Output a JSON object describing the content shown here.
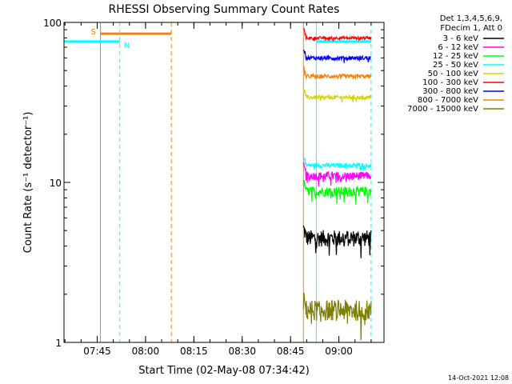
{
  "chart_data": {
    "type": "line",
    "title": "RHESSI Observing Summary Count Rates",
    "xlabel": "Start Time (02-May-08 07:34:42)",
    "ylabel": "Count Rate (s⁻¹ detector⁻¹)",
    "y_scale": "log",
    "ylim": [
      1,
      100
    ],
    "xlim": [
      "07:34:42",
      "09:14:00"
    ],
    "x_ticks": [
      "07:45",
      "08:00",
      "08:15",
      "08:30",
      "08:45",
      "09:00"
    ],
    "y_ticks": [
      "1",
      "10",
      "100"
    ],
    "grid": false,
    "legend_header": [
      "Det 1,3,4,5,6,9,",
      "FDecim 1, Att 0"
    ],
    "legend_position": "right",
    "series": [
      {
        "name": "3 - 6 keV",
        "color": "#000000",
        "segments": [
          {
            "x": [
              "08:49:00",
              "09:10:00"
            ],
            "level": 4.5,
            "noise": 0.12
          }
        ]
      },
      {
        "name": "6 - 12 keV",
        "color": "#ff00ff",
        "segments": [
          {
            "x": [
              "08:49:00",
              "09:10:00"
            ],
            "level": 11.0,
            "noise": 0.06
          }
        ]
      },
      {
        "name": "12 - 25 keV",
        "color": "#00ff00",
        "segments": [
          {
            "x": [
              "08:49:00",
              "09:10:00"
            ],
            "level": 8.8,
            "noise": 0.07
          }
        ]
      },
      {
        "name": "25 - 50 keV",
        "color": "#00ffff",
        "segments": [
          {
            "x": [
              "08:49:00",
              "09:10:00"
            ],
            "level": 12.8,
            "noise": 0.03
          }
        ]
      },
      {
        "name": "50 - 100 keV",
        "color": "#d4d400",
        "segments": [
          {
            "x": [
              "08:49:00",
              "09:10:00"
            ],
            "level": 34.0,
            "noise": 0.03
          }
        ]
      },
      {
        "name": "100 - 300 keV",
        "color": "#ff0000",
        "segments": [
          {
            "x": [
              "08:49:00",
              "09:10:00"
            ],
            "level": 80.0,
            "noise": 0.02
          }
        ]
      },
      {
        "name": "300 - 800 keV",
        "color": "#0000ff",
        "segments": [
          {
            "x": [
              "08:49:00",
              "09:10:00"
            ],
            "level": 60.0,
            "noise": 0.03
          }
        ]
      },
      {
        "name": "800 - 7000 keV",
        "color": "#ff8000",
        "segments": [
          {
            "x": [
              "08:49:00",
              "09:10:00"
            ],
            "level": 46.0,
            "noise": 0.03
          }
        ]
      },
      {
        "name": "7000 - 15000 keV",
        "color": "#808000",
        "segments": [
          {
            "x": [
              "08:49:00",
              "09:10:00"
            ],
            "level": 1.6,
            "noise": 0.15
          }
        ]
      }
    ],
    "markers": [
      {
        "label": "S",
        "color": "#ff8000",
        "style": "solid",
        "x": "07:46:00",
        "bar_to": "08:08:00",
        "level": 85
      },
      {
        "label": "",
        "color": "#ff8000",
        "style": "dashed",
        "x": "08:08:00"
      },
      {
        "label": "N",
        "color": "#00ffff",
        "style": "dashed",
        "x": "07:52:00",
        "bar_from": "07:34:42",
        "level": 76
      },
      {
        "label": "",
        "color": "#ff8000",
        "style": "solid",
        "x": "08:49:00"
      },
      {
        "label": "",
        "color": "#00ffff",
        "style": "solid",
        "x": "08:53:00",
        "bar_to": "09:10:00",
        "level": 76
      },
      {
        "label": "",
        "color": "#00ffff",
        "style": "dashed",
        "x": "09:10:00"
      },
      {
        "label": "",
        "color": "#00ffff",
        "style": "solid",
        "x": "07:34:42"
      }
    ]
  },
  "footer": {
    "timestamp": "14-Oct-2021 12:08"
  }
}
